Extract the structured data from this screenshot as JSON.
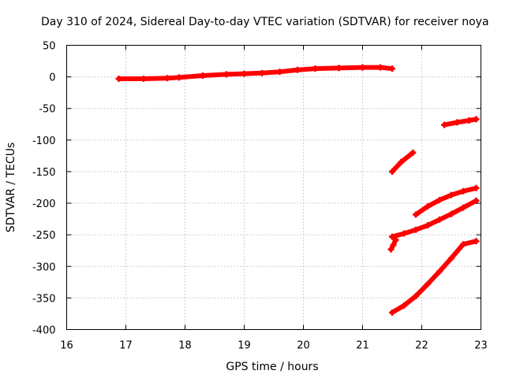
{
  "chart_data": {
    "type": "scatter",
    "title": "Day 310 of 2024, Sidereal Day-to-day VTEC variation (SDTVAR) for receiver noya",
    "xlabel": "GPS time / hours",
    "ylabel": "SDTVAR / TECUs",
    "xlim": [
      16,
      23
    ],
    "ylim": [
      -400,
      50
    ],
    "xticks": [
      16,
      17,
      18,
      19,
      20,
      21,
      22,
      23
    ],
    "yticks": [
      50,
      0,
      -50,
      -100,
      -150,
      -200,
      -250,
      -300,
      -350,
      -400
    ],
    "grid": true,
    "series_color": "#ff0000",
    "series": [
      {
        "x": [
          16.88,
          17.3,
          17.7,
          17.9,
          18.3,
          18.7,
          19.0,
          19.3,
          19.6,
          19.9,
          20.2,
          20.6,
          21.0,
          21.3,
          21.5
        ],
        "y": [
          -3,
          -3,
          -2,
          -1,
          2,
          4,
          5,
          6,
          8,
          11,
          13,
          14,
          15,
          15,
          13
        ]
      },
      {
        "x": [
          22.38,
          22.6,
          22.8,
          22.92
        ],
        "y": [
          -76,
          -72,
          -69,
          -67
        ]
      },
      {
        "x": [
          21.5,
          21.65,
          21.85
        ],
        "y": [
          -150,
          -135,
          -120
        ]
      },
      {
        "x": [
          21.9,
          22.1,
          22.3,
          22.5,
          22.7,
          22.92
        ],
        "y": [
          -218,
          -205,
          -195,
          -187,
          -181,
          -176
        ]
      },
      {
        "x": [
          21.5,
          21.7,
          21.9,
          22.1,
          22.3,
          22.5,
          22.7,
          22.92
        ],
        "y": [
          -253,
          -248,
          -242,
          -235,
          -226,
          -217,
          -207,
          -196
        ]
      },
      {
        "x": [
          21.48,
          21.52,
          21.56
        ],
        "y": [
          -273,
          -266,
          -258
        ]
      },
      {
        "x": [
          21.5,
          21.7,
          21.9,
          22.1,
          22.3,
          22.5,
          22.7,
          22.92
        ],
        "y": [
          -373,
          -362,
          -347,
          -328,
          -308,
          -287,
          -265,
          -260
        ]
      }
    ]
  }
}
